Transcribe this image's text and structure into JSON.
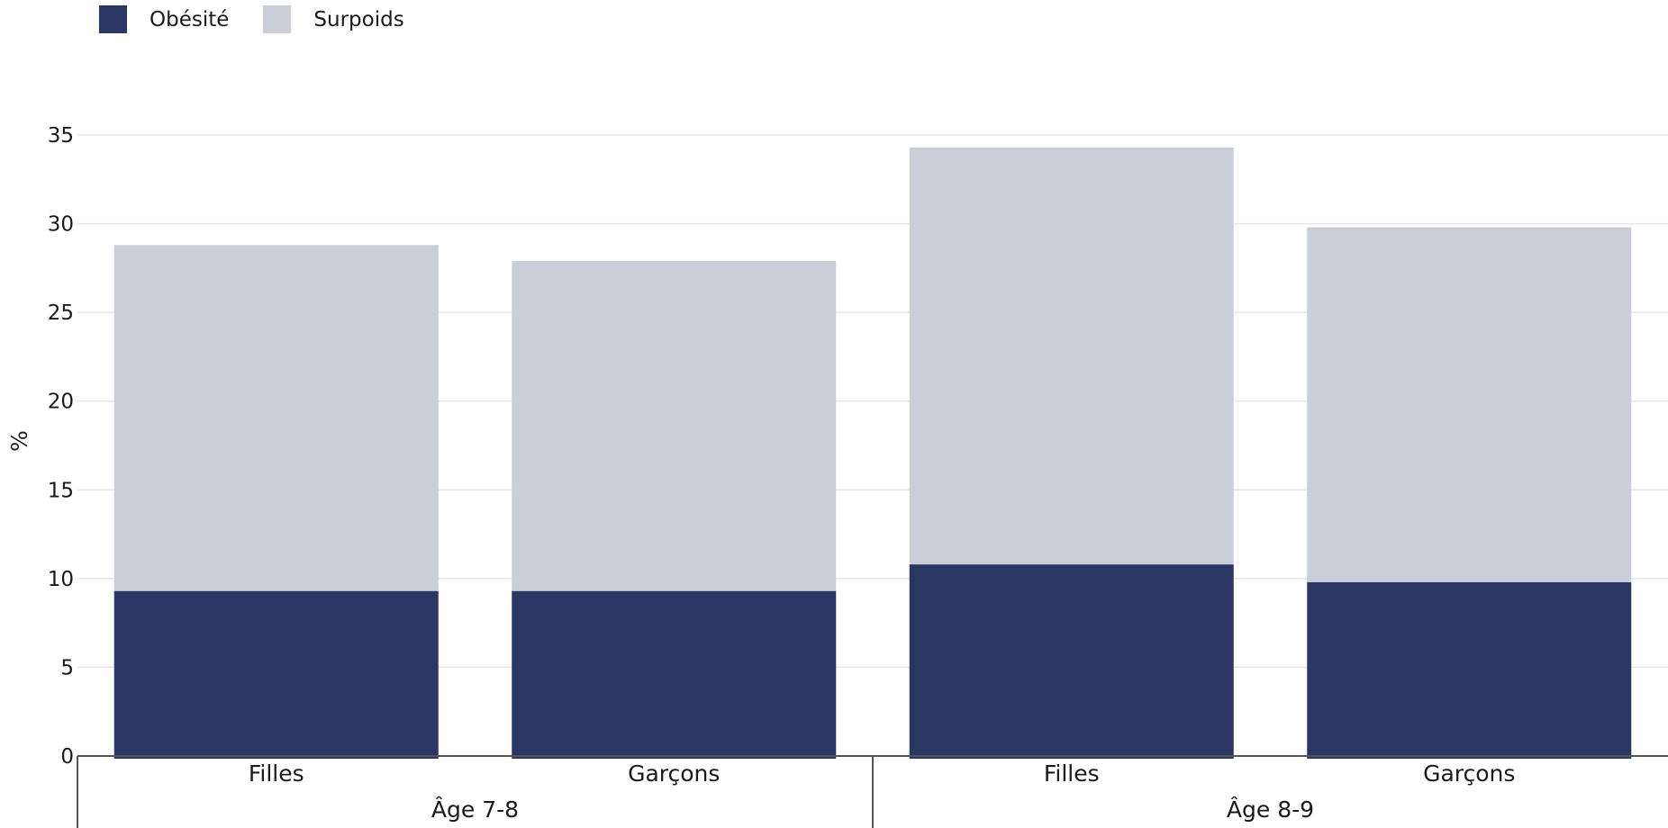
{
  "colors": {
    "obesite": "#2a3664",
    "surpoids": "#cbcdd8",
    "grid": "#e6e6e6",
    "axis": "#555555"
  },
  "legend": [
    {
      "name": "Obésité",
      "color": "#2a3664"
    },
    {
      "name": "Surpoids",
      "color": "#cbcdd8"
    }
  ],
  "chart_data": {
    "type": "bar",
    "stacked": true,
    "ylabel": "%",
    "xlabel": "",
    "ylim": [
      0,
      35
    ],
    "yticks": [
      0,
      5,
      10,
      15,
      20,
      25,
      30,
      35
    ],
    "grid": true,
    "legend_position": "top-left",
    "groups": [
      {
        "label": "Âge 7-8",
        "categories": [
          "Filles",
          "Garçons"
        ]
      },
      {
        "label": "Âge 8-9",
        "categories": [
          "Filles",
          "Garçons"
        ]
      }
    ],
    "categories": [
      "Filles",
      "Garçons",
      "Filles",
      "Garçons"
    ],
    "series": [
      {
        "name": "Obésité",
        "values": [
          9.3,
          9.3,
          10.8,
          9.8
        ]
      },
      {
        "name": "Surpoids",
        "values": [
          19.5,
          18.6,
          23.5,
          20.0
        ]
      }
    ]
  }
}
